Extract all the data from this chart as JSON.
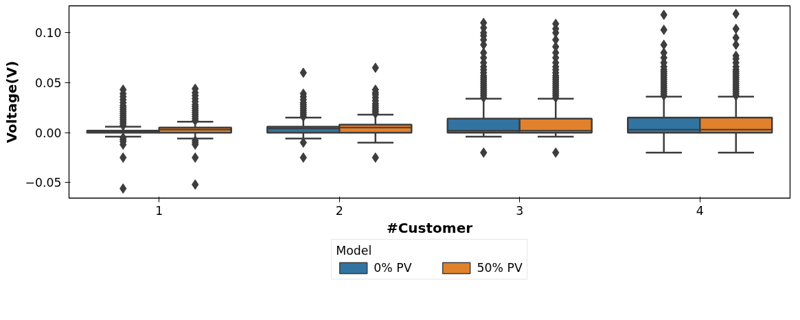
{
  "chart_data": {
    "type": "box",
    "xlabel": "#Customer",
    "ylabel": "Voltage(V)",
    "legend_title": "Model",
    "categories": [
      "1",
      "2",
      "3",
      "4"
    ],
    "ylim": [
      -0.0656,
      0.127
    ],
    "yticks": [
      {
        "value": -0.05,
        "label": "−0.05"
      },
      {
        "value": 0.0,
        "label": "0.00"
      },
      0.05,
      {
        "value": 0.1,
        "label": "0.10"
      }
    ],
    "grid": false,
    "legend": "bottom",
    "marker": "diamond",
    "series": [
      {
        "name": "0% PV",
        "color": "#3274a1",
        "boxes": [
          {
            "low": -0.004,
            "q1": 0.0,
            "median": 0.001,
            "q3": 0.002,
            "high": 0.006,
            "outliers": [
              0.007,
              0.009,
              0.011,
              0.013,
              0.015,
              0.017,
              0.019,
              0.021,
              0.023,
              0.025,
              0.027,
              0.03,
              0.033,
              0.036,
              0.039,
              0.043,
              -0.005,
              -0.007,
              -0.009,
              -0.012,
              -0.025,
              -0.056
            ]
          },
          {
            "low": -0.006,
            "q1": 0.0,
            "median": 0.004,
            "q3": 0.006,
            "high": 0.015,
            "outliers": [
              0.016,
              0.018,
              0.02,
              0.022,
              0.024,
              0.026,
              0.028,
              0.03,
              0.033,
              0.036,
              0.039,
              0.06,
              -0.01,
              -0.025
            ]
          },
          {
            "low": -0.004,
            "q1": 0.0,
            "median": 0.002,
            "q3": 0.014,
            "high": 0.034,
            "outliers": [
              0.035,
              0.037,
              0.039,
              0.041,
              0.043,
              0.045,
              0.047,
              0.049,
              0.051,
              0.053,
              0.055,
              0.057,
              0.06,
              0.063,
              0.066,
              0.07,
              0.075,
              0.08,
              0.088,
              0.093,
              0.097,
              0.1,
              0.105,
              0.11,
              -0.02
            ]
          },
          {
            "low": -0.02,
            "q1": 0.0,
            "median": 0.003,
            "q3": 0.015,
            "high": 0.036,
            "outliers": [
              0.037,
              0.039,
              0.041,
              0.043,
              0.045,
              0.047,
              0.049,
              0.051,
              0.053,
              0.055,
              0.057,
              0.059,
              0.061,
              0.063,
              0.066,
              0.07,
              0.075,
              0.08,
              0.088,
              0.103,
              0.118
            ]
          }
        ]
      },
      {
        "name": "50% PV",
        "color": "#e1812c",
        "boxes": [
          {
            "low": -0.006,
            "q1": 0.0,
            "median": 0.003,
            "q3": 0.005,
            "high": 0.011,
            "outliers": [
              0.012,
              0.014,
              0.016,
              0.018,
              0.02,
              0.022,
              0.024,
              0.026,
              0.028,
              0.031,
              0.034,
              0.037,
              0.04,
              0.044,
              -0.008,
              -0.01,
              -0.012,
              -0.025,
              -0.052
            ]
          },
          {
            "low": -0.01,
            "q1": 0.0,
            "median": 0.005,
            "q3": 0.008,
            "high": 0.018,
            "outliers": [
              0.019,
              0.021,
              0.023,
              0.025,
              0.027,
              0.029,
              0.032,
              0.035,
              0.038,
              0.04,
              0.043,
              0.065,
              -0.025
            ]
          },
          {
            "low": -0.004,
            "q1": 0.0,
            "median": 0.002,
            "q3": 0.014,
            "high": 0.034,
            "outliers": [
              0.035,
              0.037,
              0.039,
              0.041,
              0.043,
              0.045,
              0.047,
              0.049,
              0.051,
              0.053,
              0.055,
              0.057,
              0.06,
              0.063,
              0.066,
              0.07,
              0.075,
              0.08,
              0.086,
              0.093,
              0.1,
              0.104,
              0.109,
              -0.02
            ]
          },
          {
            "low": -0.02,
            "q1": 0.0,
            "median": 0.003,
            "q3": 0.015,
            "high": 0.036,
            "outliers": [
              0.037,
              0.039,
              0.041,
              0.043,
              0.045,
              0.047,
              0.049,
              0.051,
              0.053,
              0.055,
              0.057,
              0.059,
              0.061,
              0.063,
              0.066,
              0.07,
              0.074,
              0.077,
              0.088,
              0.095,
              0.104,
              0.119
            ]
          }
        ]
      }
    ]
  }
}
